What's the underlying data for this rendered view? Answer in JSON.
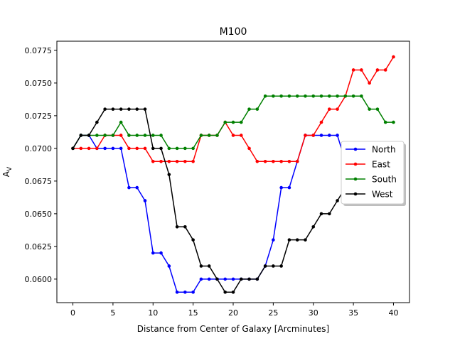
{
  "chart_data": {
    "type": "line",
    "title": "M100",
    "xlabel": "Distance from Center of Galaxy [Arcminutes]",
    "ylabel_main": "A",
    "ylabel_sub": "V",
    "xlim": [
      -2,
      42
    ],
    "ylim": [
      0.0582,
      0.0782
    ],
    "xticks": [
      0,
      5,
      10,
      15,
      20,
      25,
      30,
      35,
      40
    ],
    "yticks": [
      0.06,
      0.0625,
      0.065,
      0.0675,
      0.07,
      0.0725,
      0.075,
      0.0775
    ],
    "ytick_labels": [
      "0.0600",
      "0.0625",
      "0.0650",
      "0.0675",
      "0.0700",
      "0.0725",
      "0.0750",
      "0.0775"
    ],
    "grid": false,
    "legend_position": "right",
    "x": [
      0,
      1,
      2,
      3,
      4,
      5,
      6,
      7,
      8,
      9,
      10,
      11,
      12,
      13,
      14,
      15,
      16,
      17,
      18,
      19,
      20,
      21,
      22,
      23,
      24,
      25,
      26,
      27,
      28,
      29,
      30,
      31,
      32,
      33,
      34,
      35,
      36,
      37,
      38,
      39,
      40
    ],
    "series": [
      {
        "name": "North",
        "color": "#0000ff",
        "values": [
          0.07,
          0.071,
          0.071,
          0.07,
          0.07,
          0.07,
          0.07,
          0.067,
          0.067,
          0.066,
          0.062,
          0.062,
          0.061,
          0.059,
          0.059,
          0.059,
          0.06,
          0.06,
          0.06,
          0.06,
          0.06,
          0.06,
          0.06,
          0.06,
          0.061,
          0.063,
          0.067,
          0.067,
          0.069,
          0.071,
          0.071,
          0.071,
          0.071,
          0.071,
          0.069,
          0.069,
          null,
          null,
          null,
          null,
          null
        ]
      },
      {
        "name": "East",
        "color": "#ff0000",
        "values": [
          0.07,
          0.07,
          0.07,
          0.07,
          0.071,
          0.071,
          0.071,
          0.07,
          0.07,
          0.07,
          0.069,
          0.069,
          0.069,
          0.069,
          0.069,
          0.069,
          0.071,
          0.071,
          0.071,
          0.072,
          0.071,
          0.071,
          0.07,
          0.069,
          0.069,
          0.069,
          0.069,
          0.069,
          0.069,
          0.071,
          0.071,
          0.072,
          0.073,
          0.073,
          0.074,
          0.076,
          0.076,
          0.075,
          0.076,
          0.076,
          0.077
        ]
      },
      {
        "name": "South",
        "color": "#008000",
        "values": [
          0.07,
          0.071,
          0.071,
          0.071,
          0.071,
          0.071,
          0.072,
          0.071,
          0.071,
          0.071,
          0.071,
          0.071,
          0.07,
          0.07,
          0.07,
          0.07,
          0.071,
          0.071,
          0.071,
          0.072,
          0.072,
          0.072,
          0.073,
          0.073,
          0.074,
          0.074,
          0.074,
          0.074,
          0.074,
          0.074,
          0.074,
          0.074,
          0.074,
          0.074,
          0.074,
          0.074,
          0.074,
          0.073,
          0.073,
          0.072,
          0.072
        ]
      },
      {
        "name": "West",
        "color": "#000000",
        "values": [
          0.07,
          0.071,
          0.071,
          0.072,
          0.073,
          0.073,
          0.073,
          0.073,
          0.073,
          0.073,
          0.07,
          0.07,
          0.068,
          0.064,
          0.064,
          0.063,
          0.061,
          0.061,
          0.06,
          0.059,
          0.059,
          0.06,
          0.06,
          0.06,
          0.061,
          0.061,
          0.061,
          0.063,
          0.063,
          0.063,
          0.064,
          0.065,
          0.065,
          0.066,
          0.067,
          null,
          null,
          null,
          null,
          null,
          null
        ]
      }
    ]
  }
}
